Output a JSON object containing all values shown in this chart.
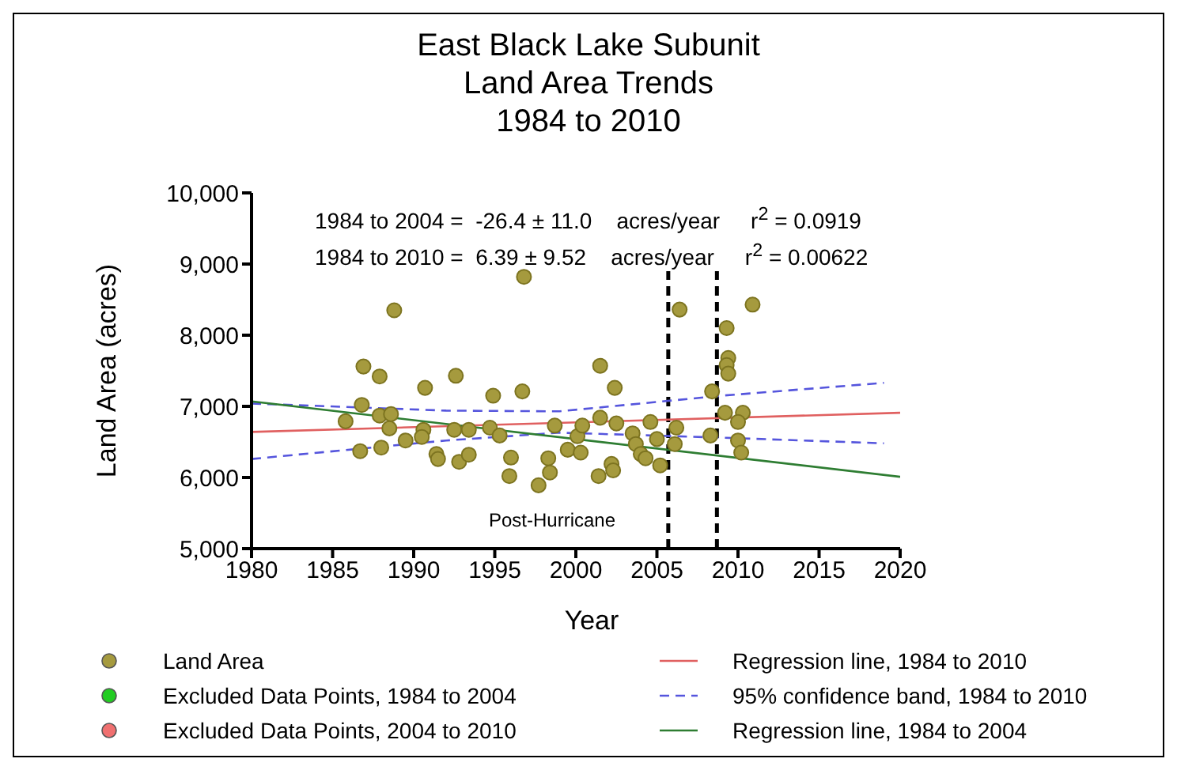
{
  "chart_data": {
    "type": "scatter",
    "title": "East Black Lake Subunit\nLand Area Trends\n1984 to 2010",
    "xlabel": "Year",
    "ylabel": "Land  Area (acres)",
    "xlim": [
      1980,
      2020
    ],
    "xticks": [
      1980,
      1985,
      1990,
      1995,
      2000,
      2005,
      2010,
      2015,
      2020
    ],
    "ylim": [
      5000,
      10000
    ],
    "yticks": [
      {
        "value": 5000,
        "label": "5,000"
      },
      {
        "value": 6000,
        "label": "6,000"
      },
      {
        "value": 7000,
        "label": "7,000"
      },
      {
        "value": 8000,
        "label": "8,000"
      },
      {
        "value": 9000,
        "label": "9,000"
      },
      {
        "value": 10000,
        "label": "10,000"
      }
    ],
    "legend": "bottom",
    "annotations": [
      "1984 to 2004 =  -26.4 ± 11.0    acres/year     r$^{2}$ = 0.0919",
      "1984 to 2010 =  6.39 ± 9.52    acres/year     r$^{2}$ = 0.00622",
      "Post-Hurricane"
    ],
    "ref_lines": [
      {
        "axis": "x",
        "value": 2005.7,
        "color": "#000000",
        "line_style": "dashed"
      },
      {
        "axis": "x",
        "value": 2008.7,
        "color": "#000000",
        "line_style": "dashed"
      }
    ],
    "series": [
      {
        "name": "Land Area",
        "marker": "circle",
        "color": "#a59a3e",
        "x": [
          1985.8,
          1986.9,
          1986.8,
          1986.7,
          1987.9,
          1987.9,
          1988.0,
          1988.8,
          1988.6,
          1988.5,
          1989.5,
          1990.7,
          1990.6,
          1990.5,
          1991.4,
          1991.5,
          1992.6,
          1992.5,
          1992.8,
          1993.4,
          1993.4,
          1994.9,
          1994.7,
          1995.3,
          1996.0,
          1995.9,
          1996.7,
          1996.8,
          1997.7,
          1998.3,
          1998.4,
          1998.7,
          1999.5,
          2000.1,
          2000.3,
          2000.4,
          2001.5,
          2001.5,
          2001.4,
          2002.2,
          2002.3,
          2002.4,
          2002.5,
          2003.5,
          2003.7,
          2004.0,
          2004.3,
          2004.6,
          2005.0,
          2005.2,
          2006.4,
          2006.2,
          2006.1,
          2008.4,
          2008.3,
          2009.3,
          2009.4,
          2009.3,
          2009.4,
          2009.2,
          2010.3,
          2010.0,
          2010.0,
          2010.2,
          2010.9
        ],
        "values": [
          6790,
          7560,
          7020,
          6370,
          7420,
          6870,
          6420,
          8350,
          6890,
          6690,
          6520,
          7260,
          6670,
          6570,
          6330,
          6260,
          7430,
          6670,
          6220,
          6670,
          6320,
          7150,
          6700,
          6590,
          6280,
          6020,
          7210,
          8820,
          5890,
          6270,
          6070,
          6730,
          6390,
          6580,
          6350,
          6730,
          7570,
          6840,
          6020,
          6190,
          6100,
          7260,
          6760,
          6620,
          6470,
          6330,
          6270,
          6780,
          6540,
          6170,
          8360,
          6700,
          6470,
          7210,
          6590,
          8100,
          7680,
          7580,
          7460,
          6910,
          6910,
          6780,
          6520,
          6350,
          8430
        ]
      },
      {
        "name": "Excluded Data Points, 1984 to 2004",
        "marker": "circle",
        "color": "#22cc22"
      },
      {
        "name": "Excluded Data Points, 2004 to 2010",
        "marker": "circle",
        "color": "#f07070"
      },
      {
        "name": "Regression line, 1984 to 2010",
        "type": "line",
        "color": "#e06060",
        "line_style": "solid",
        "x": [
          1980,
          2020
        ],
        "values": [
          6640,
          6910
        ]
      },
      {
        "name": "95% confidence band, 1984 to 2010",
        "type": "line",
        "color": "#5555dd",
        "line_style": "dashed",
        "x": [
          1980,
          1992,
          1999,
          2009,
          2019
        ],
        "values": [
          7040,
          6940,
          6930,
          7150,
          7330
        ]
      },
      {
        "type": "line",
        "color": "#5555dd",
        "line_style": "dashed",
        "x": [
          1980,
          1992,
          1999,
          2009,
          2019
        ],
        "values": [
          6260,
          6520,
          6630,
          6560,
          6480
        ]
      },
      {
        "name": "Regression line, 1984 to 2004",
        "type": "line",
        "color": "#2e7d32",
        "line_style": "solid",
        "x": [
          1980,
          2020
        ],
        "values": [
          7070,
          6010
        ]
      }
    ]
  }
}
